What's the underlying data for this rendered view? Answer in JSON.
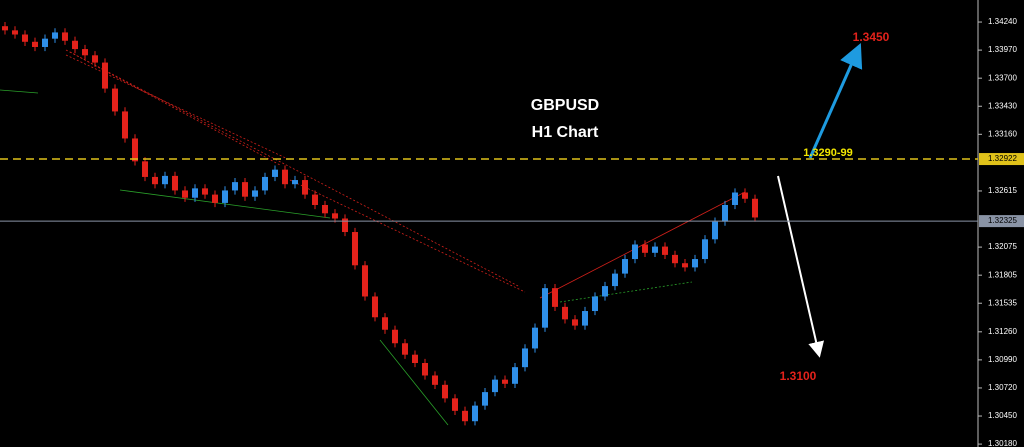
{
  "chart_data": {
    "type": "candlestick",
    "title": "GBPUSD",
    "subtitle": "H1 Chart",
    "up_color": "#2f8fe8",
    "down_color": "#e3221b",
    "open": [
      1.342,
      1.3416,
      1.3412,
      1.3405,
      1.34,
      1.3408,
      1.3414,
      1.3406,
      1.3398,
      1.3392,
      1.3385,
      1.336,
      1.3338,
      1.3312,
      1.329,
      1.3275,
      1.3268,
      1.3276,
      1.3262,
      1.3255,
      1.3264,
      1.3258,
      1.325,
      1.3262,
      1.327,
      1.3256,
      1.3262,
      1.3275,
      1.3282,
      1.3268,
      1.3272,
      1.3258,
      1.3248,
      1.324,
      1.3235,
      1.3222,
      1.319,
      1.316,
      1.314,
      1.3128,
      1.3115,
      1.3104,
      1.3096,
      1.3084,
      1.3075,
      1.3062,
      1.305,
      1.304,
      1.3055,
      1.3068,
      1.308,
      1.3076,
      1.3092,
      1.311,
      1.313,
      1.3168,
      1.315,
      1.3138,
      1.3132,
      1.3146,
      1.316,
      1.317,
      1.3182,
      1.3196,
      1.321,
      1.3202,
      1.3208,
      1.32,
      1.3192,
      1.3188,
      1.3196,
      1.3215,
      1.3232,
      1.3248,
      1.326,
      1.3254
    ],
    "high": [
      1.3424,
      1.342,
      1.3416,
      1.3409,
      1.3412,
      1.3418,
      1.3418,
      1.341,
      1.3402,
      1.3396,
      1.3389,
      1.3364,
      1.3342,
      1.3316,
      1.3294,
      1.3279,
      1.328,
      1.328,
      1.3266,
      1.3268,
      1.3268,
      1.3262,
      1.3266,
      1.3274,
      1.3274,
      1.3266,
      1.3279,
      1.3286,
      1.3286,
      1.3276,
      1.3276,
      1.3262,
      1.3252,
      1.3244,
      1.3239,
      1.3226,
      1.3194,
      1.3164,
      1.3144,
      1.3132,
      1.3119,
      1.3108,
      1.31,
      1.3088,
      1.3079,
      1.3066,
      1.3054,
      1.3059,
      1.3072,
      1.3084,
      1.3084,
      1.3096,
      1.3114,
      1.3134,
      1.3172,
      1.3172,
      1.3154,
      1.3142,
      1.315,
      1.3164,
      1.3174,
      1.3186,
      1.32,
      1.3214,
      1.3214,
      1.3212,
      1.3212,
      1.3204,
      1.3196,
      1.32,
      1.3219,
      1.3236,
      1.3252,
      1.3264,
      1.3264,
      1.3258
    ],
    "low": [
      1.3412,
      1.3408,
      1.3401,
      1.3396,
      1.3396,
      1.3404,
      1.3402,
      1.3394,
      1.3388,
      1.3381,
      1.3356,
      1.3334,
      1.3308,
      1.3286,
      1.3271,
      1.3264,
      1.3264,
      1.3258,
      1.3251,
      1.3251,
      1.3254,
      1.3246,
      1.3246,
      1.3258,
      1.3252,
      1.3252,
      1.3258,
      1.3271,
      1.3264,
      1.3264,
      1.3254,
      1.3244,
      1.3236,
      1.3231,
      1.3218,
      1.3186,
      1.3156,
      1.3136,
      1.3124,
      1.3111,
      1.31,
      1.3092,
      1.308,
      1.3071,
      1.3058,
      1.3046,
      1.3036,
      1.3036,
      1.3051,
      1.3064,
      1.3072,
      1.3072,
      1.3088,
      1.3106,
      1.3126,
      1.3146,
      1.3134,
      1.3128,
      1.3128,
      1.3142,
      1.3156,
      1.3166,
      1.3178,
      1.3192,
      1.3198,
      1.3198,
      1.3196,
      1.3188,
      1.3184,
      1.3184,
      1.3192,
      1.3211,
      1.3228,
      1.3244,
      1.325,
      1.3232
    ],
    "close": [
      1.3416,
      1.3412,
      1.3405,
      1.34,
      1.3408,
      1.3414,
      1.3406,
      1.3398,
      1.3392,
      1.3385,
      1.336,
      1.3338,
      1.3312,
      1.329,
      1.3275,
      1.3268,
      1.3276,
      1.3262,
      1.3255,
      1.3264,
      1.3258,
      1.325,
      1.3262,
      1.327,
      1.3256,
      1.3262,
      1.3275,
      1.3282,
      1.3268,
      1.3272,
      1.3258,
      1.3248,
      1.324,
      1.3235,
      1.3222,
      1.319,
      1.316,
      1.314,
      1.3128,
      1.3115,
      1.3104,
      1.3096,
      1.3084,
      1.3075,
      1.3062,
      1.305,
      1.304,
      1.3055,
      1.3068,
      1.308,
      1.3076,
      1.3092,
      1.311,
      1.313,
      1.3168,
      1.315,
      1.3138,
      1.3132,
      1.3146,
      1.316,
      1.317,
      1.3182,
      1.3196,
      1.321,
      1.3202,
      1.3208,
      1.32,
      1.3192,
      1.3188,
      1.3196,
      1.3215,
      1.3232,
      1.3248,
      1.326,
      1.3254,
      1.3236
    ],
    "ylim": [
      1.30152,
      1.34452
    ],
    "yticks": [
      {
        "value": 1.3424,
        "label": "1.34240"
      },
      {
        "value": 1.3397,
        "label": "1.33970"
      },
      {
        "value": 1.337,
        "label": "1.33700"
      },
      {
        "value": 1.3343,
        "label": "1.33430"
      },
      {
        "value": 1.3316,
        "label": "1.33160"
      },
      {
        "value": 1.32615,
        "label": "1.32615"
      },
      {
        "value": 1.32075,
        "label": "1.32075"
      },
      {
        "value": 1.31805,
        "label": "1.31805"
      },
      {
        "value": 1.31535,
        "label": "1.31535"
      },
      {
        "value": 1.3126,
        "label": "1.31260"
      },
      {
        "value": 1.3099,
        "label": "1.30990"
      },
      {
        "value": 1.3072,
        "label": "1.30720"
      },
      {
        "value": 1.3045,
        "label": "1.30450"
      },
      {
        "value": 1.3018,
        "label": "1.30180"
      }
    ],
    "hlines": [
      {
        "value": 1.32922,
        "label": "1.32922",
        "color": "#e0c21a",
        "dashed": true
      },
      {
        "value": 1.32325,
        "label": "1.32325",
        "color": "#8a94a6",
        "dashed": false
      }
    ],
    "annotations": [
      {
        "text": "1.3450",
        "color": "#e3221b"
      },
      {
        "text": "1.3290-99",
        "color": "#f2e600"
      },
      {
        "text": "1.3100",
        "color": "#e3221b"
      }
    ]
  }
}
